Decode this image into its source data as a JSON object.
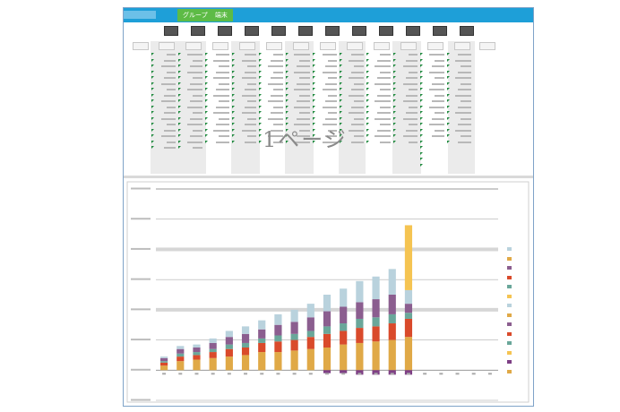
{
  "ribbon": {
    "file_tab": "",
    "group_label": "グループ",
    "group_sub_label": "端末"
  },
  "sheet": {
    "watermark": "1ページ"
  },
  "colors": {
    "ribbon": "#1e9fd8",
    "tab_active": "#5dbb46",
    "flag": "#1f8a3e"
  },
  "chart_data": {
    "type": "bar",
    "stacked": true,
    "grid": true,
    "legend_position": "right",
    "categories": [
      "",
      "",
      "",
      "",
      "",
      "",
      "",
      "",
      "",
      "",
      "",
      "",
      "",
      "",
      "",
      "",
      "",
      "",
      "",
      "",
      ""
    ],
    "series": [
      {
        "color": "#e0a947",
        "values": [
          3,
          6,
          7,
          8,
          9,
          10,
          12,
          12,
          13,
          14,
          15,
          17,
          18,
          19,
          20,
          22,
          0,
          0,
          0,
          0,
          0
        ]
      },
      {
        "color": "#d94a2b",
        "values": [
          2,
          3,
          3,
          4,
          5,
          5,
          6,
          7,
          7,
          8,
          9,
          9,
          10,
          10,
          11,
          12,
          0,
          0,
          0,
          0,
          0
        ]
      },
      {
        "color": "#6aa79a",
        "values": [
          1,
          2,
          2,
          2,
          3,
          3,
          3,
          4,
          4,
          4,
          5,
          5,
          6,
          6,
          6,
          4,
          0,
          0,
          0,
          0,
          0
        ]
      },
      {
        "color": "#8b5e8f",
        "values": [
          2,
          3,
          3,
          4,
          5,
          6,
          6,
          7,
          8,
          9,
          10,
          11,
          11,
          12,
          13,
          6,
          0,
          0,
          0,
          0,
          0
        ]
      },
      {
        "color": "#b9d2dd",
        "values": [
          1,
          2,
          2,
          3,
          4,
          5,
          6,
          7,
          8,
          9,
          11,
          12,
          14,
          15,
          17,
          9,
          0,
          0,
          0,
          0,
          0
        ]
      },
      {
        "color": "#f5c452",
        "values": [
          0,
          0,
          0,
          0,
          0,
          0,
          0,
          0,
          0,
          0,
          0,
          0,
          0,
          0,
          0,
          43,
          0,
          0,
          0,
          0,
          0
        ]
      },
      {
        "color": "#7e3f85",
        "values": [
          0,
          0,
          0,
          0,
          0,
          0,
          0,
          0,
          0,
          0,
          -2,
          -2,
          -3,
          -3,
          -3,
          -3,
          0,
          0,
          0,
          0,
          0
        ]
      }
    ],
    "ylim": [
      -20,
      120
    ]
  },
  "legend": [
    {
      "label": "",
      "color": "#b9d2dd"
    },
    {
      "label": "",
      "color": "#e0a947"
    },
    {
      "label": "",
      "color": "#8b5e8f"
    },
    {
      "label": "",
      "color": "#d94a2b"
    },
    {
      "label": "",
      "color": "#6aa79a"
    },
    {
      "label": "",
      "color": "#f5c452"
    },
    {
      "label": "",
      "color": "#b9d2dd"
    },
    {
      "label": "",
      "color": "#e0a947"
    },
    {
      "label": "",
      "color": "#8b5e8f"
    },
    {
      "label": "",
      "color": "#d94a2b"
    },
    {
      "label": "",
      "color": "#6aa79a"
    },
    {
      "label": "",
      "color": "#f5c452"
    },
    {
      "label": "",
      "color": "#7e3f85"
    },
    {
      "label": "",
      "color": "#e0a947"
    }
  ]
}
